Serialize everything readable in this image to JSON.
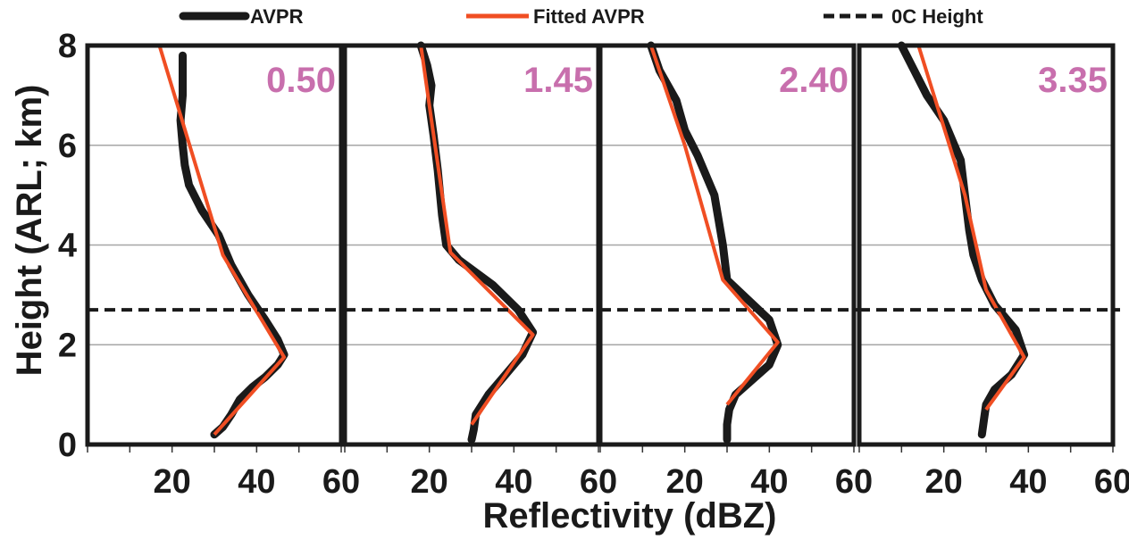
{
  "chart_data": {
    "type": "line",
    "xlabel": "Reflectivity (dBZ)",
    "ylabel": "Height (ARL; km)",
    "xlim": [
      0,
      60
    ],
    "ylim": [
      0,
      8
    ],
    "x_ticks": [
      "20",
      "40",
      "60"
    ],
    "y_ticks": [
      "0",
      "2",
      "4",
      "6",
      "8"
    ],
    "grid": "horizontal",
    "legend": {
      "placement": "top",
      "entries": [
        {
          "label": "AVPR",
          "color": "#1a1a1a",
          "style": "thick-solid"
        },
        {
          "label": "Fitted AVPR",
          "color": "#f04e23",
          "style": "solid"
        },
        {
          "label": "0C Height",
          "color": "#1a1a1a",
          "style": "dashed"
        }
      ]
    },
    "label_color": "#c86fad",
    "freezing_level_km": 2.7,
    "panels": [
      {
        "label": "0.50",
        "avpr": [
          [
            30,
            0.2
          ],
          [
            32,
            0.35
          ],
          [
            34,
            0.6
          ],
          [
            36,
            0.9
          ],
          [
            39,
            1.15
          ],
          [
            42,
            1.35
          ],
          [
            45,
            1.6
          ],
          [
            46.5,
            1.8
          ],
          [
            45,
            2.1
          ],
          [
            42,
            2.5
          ],
          [
            38,
            3.0
          ],
          [
            34,
            3.6
          ],
          [
            31,
            4.2
          ],
          [
            27,
            4.7
          ],
          [
            24,
            5.2
          ],
          [
            23,
            5.6
          ],
          [
            22.5,
            6.0
          ],
          [
            22,
            6.5
          ],
          [
            22.5,
            7.0
          ],
          [
            22.5,
            7.5
          ],
          [
            22.5,
            7.8
          ]
        ],
        "fitted": [
          [
            30,
            0.2
          ],
          [
            46.5,
            1.75
          ],
          [
            32,
            3.8
          ],
          [
            17,
            8
          ]
        ]
      },
      {
        "label": "1.45",
        "avpr": [
          [
            30,
            0.1
          ],
          [
            30.5,
            0.3
          ],
          [
            31,
            0.6
          ],
          [
            34,
            1.0
          ],
          [
            38,
            1.4
          ],
          [
            42,
            1.8
          ],
          [
            44.5,
            2.25
          ],
          [
            41,
            2.7
          ],
          [
            35,
            3.2
          ],
          [
            27,
            3.7
          ],
          [
            24,
            4.0
          ],
          [
            23,
            4.6
          ],
          [
            22,
            5.5
          ],
          [
            21,
            6.2
          ],
          [
            20,
            6.8
          ],
          [
            20.5,
            7.2
          ],
          [
            19.5,
            7.6
          ],
          [
            18,
            8
          ]
        ],
        "fitted": [
          [
            30,
            0.4
          ],
          [
            44.5,
            2.2
          ],
          [
            25,
            3.85
          ],
          [
            20,
            6.8
          ],
          [
            18,
            8
          ]
        ]
      },
      {
        "label": "2.40",
        "avpr": [
          [
            30,
            0.1
          ],
          [
            30,
            0.4
          ],
          [
            30.5,
            0.7
          ],
          [
            32,
            1.0
          ],
          [
            36,
            1.3
          ],
          [
            40,
            1.6
          ],
          [
            42,
            2.0
          ],
          [
            40,
            2.5
          ],
          [
            35,
            2.9
          ],
          [
            30,
            3.3
          ],
          [
            29,
            4.0
          ],
          [
            27,
            5.0
          ],
          [
            23,
            5.8
          ],
          [
            20,
            6.3
          ],
          [
            18,
            6.9
          ],
          [
            14,
            7.5
          ],
          [
            12,
            8
          ]
        ],
        "fitted": [
          [
            30,
            0.8
          ],
          [
            42,
            2.05
          ],
          [
            29,
            3.3
          ],
          [
            20,
            6.0
          ],
          [
            12,
            8
          ]
        ]
      },
      {
        "label": "3.35",
        "avpr": [
          [
            29,
            0.2
          ],
          [
            29.5,
            0.5
          ],
          [
            30,
            0.8
          ],
          [
            32,
            1.1
          ],
          [
            36,
            1.4
          ],
          [
            39,
            1.8
          ],
          [
            37,
            2.3
          ],
          [
            32,
            2.8
          ],
          [
            29,
            3.3
          ],
          [
            27,
            3.8
          ],
          [
            26,
            4.3
          ],
          [
            25,
            5.0
          ],
          [
            24,
            5.7
          ],
          [
            22,
            6.1
          ],
          [
            20,
            6.5
          ],
          [
            16,
            7.0
          ],
          [
            13,
            7.5
          ],
          [
            10,
            8
          ]
        ],
        "fitted": [
          [
            30,
            0.7
          ],
          [
            39,
            1.75
          ],
          [
            30,
            3.1
          ],
          [
            25,
            5.0
          ],
          [
            14,
            8
          ]
        ]
      }
    ]
  }
}
